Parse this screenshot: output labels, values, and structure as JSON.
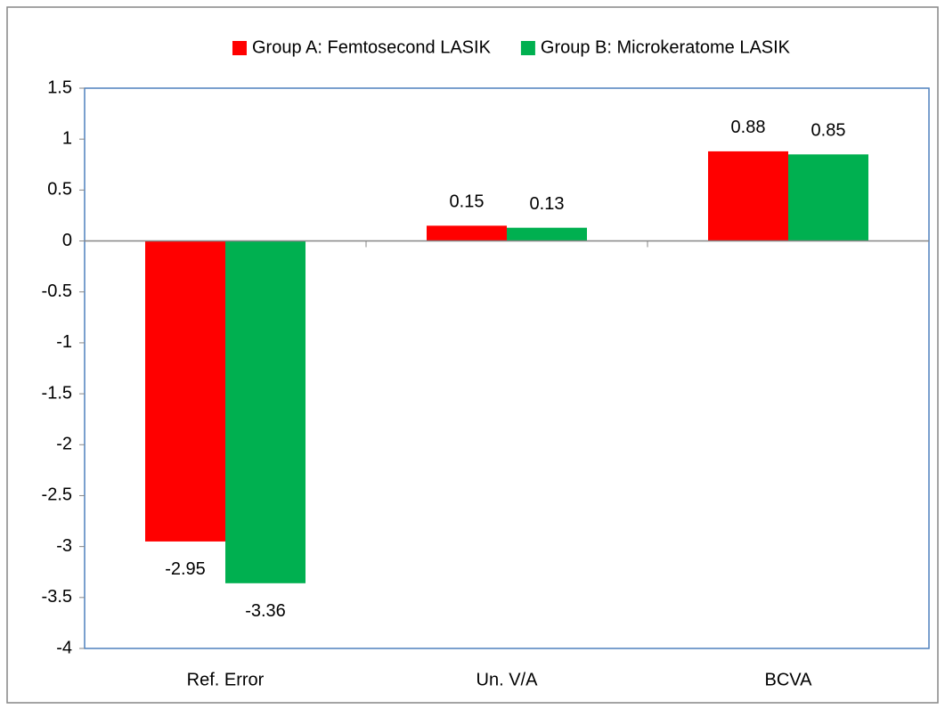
{
  "chart_data": {
    "type": "bar",
    "categories": [
      "Ref. Error",
      "Un. V/A",
      "BCVA"
    ],
    "series": [
      {
        "name": "Group A: Femtosecond LASIK",
        "color": "#ff0000",
        "values": [
          -2.95,
          0.15,
          0.88
        ]
      },
      {
        "name": "Group B: Microkeratome LASIK",
        "color": "#00b050",
        "values": [
          -3.36,
          0.13,
          0.85
        ]
      }
    ],
    "ylim": [
      -4,
      1.5
    ],
    "yticks": [
      -4,
      -3.5,
      -3,
      -2.5,
      -2,
      -1.5,
      -1,
      -0.5,
      0,
      0.5,
      1,
      1.5
    ],
    "grid": false,
    "legend": "top"
  }
}
